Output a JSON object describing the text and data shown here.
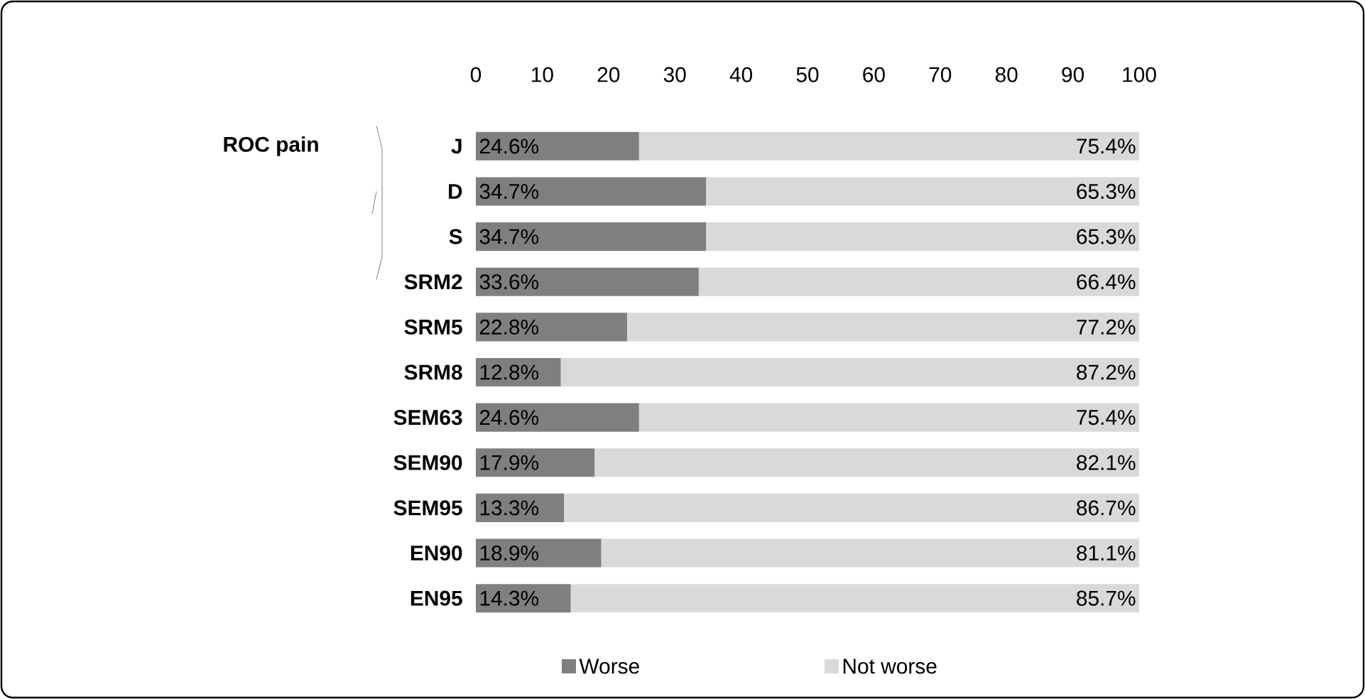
{
  "chart_data": {
    "type": "bar",
    "orientation": "horizontal",
    "stacked": true,
    "categories": [
      "J",
      "D",
      "S",
      "SRM2",
      "SRM5",
      "SRM8",
      "SEM63",
      "SEM90",
      "SEM95",
      "EN90",
      "EN95"
    ],
    "series": [
      {
        "name": "Worse",
        "color": "#7f7f7f",
        "values": [
          24.6,
          34.7,
          34.7,
          33.6,
          22.8,
          12.8,
          24.6,
          17.9,
          13.3,
          18.9,
          14.3
        ],
        "value_labels": [
          "24.6%",
          "34.7%",
          "34.7%",
          "33.6%",
          "22.8%",
          "12.8%",
          "24.6%",
          "17.9%",
          "13.3%",
          "18.9%",
          "14.3%"
        ]
      },
      {
        "name": "Not worse",
        "color": "#d9d9d9",
        "values": [
          75.4,
          65.3,
          65.3,
          66.4,
          77.2,
          87.2,
          75.4,
          82.1,
          86.7,
          81.1,
          85.7
        ],
        "value_labels": [
          "75.4%",
          "65.3%",
          "65.3%",
          "66.4%",
          "77.2%",
          "87.2%",
          "75.4%",
          "82.1%",
          "86.7%",
          "81.1%",
          "85.7%"
        ]
      }
    ],
    "xlim": [
      0,
      100
    ],
    "xticks": [
      0,
      10,
      20,
      30,
      40,
      50,
      60,
      70,
      80,
      90,
      100
    ],
    "annotations": [
      "ROC pain"
    ],
    "legend": "bottom",
    "grid": false
  }
}
